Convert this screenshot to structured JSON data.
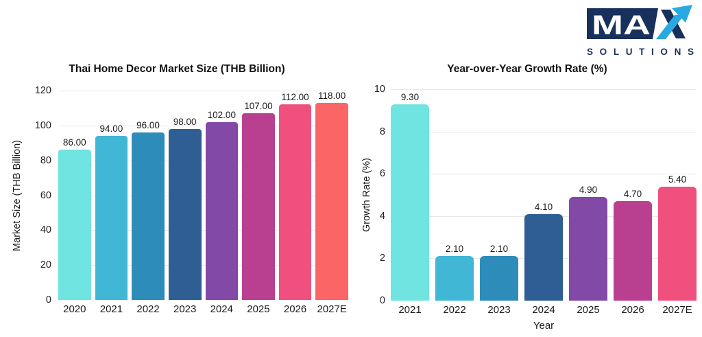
{
  "page": {
    "background": "#ffffff"
  },
  "logo": {
    "ma_letters": "MA",
    "subtext": "SOLUTIONS",
    "navy": "#18305C",
    "light_blue": "#29A9E1"
  },
  "chart_data": [
    {
      "type": "bar",
      "title": "Thai Home Decor Market Size (THB Billion)",
      "categories": [
        "2020",
        "2021",
        "2022",
        "2023",
        "2024",
        "2025",
        "2026",
        "2027E"
      ],
      "values": [
        86,
        94,
        96,
        98,
        102,
        107,
        112,
        118
      ],
      "value_labels": [
        "86.00",
        "94.00",
        "96.00",
        "98.00",
        "102.00",
        "107.00",
        "112.00",
        "118.00"
      ],
      "xlabel": "",
      "ylabel": "Market Size (THB Billion)",
      "ylim": [
        0,
        120
      ],
      "ytick_step": 20,
      "grid": true,
      "legend": false,
      "bar_colors": [
        "#6FE4E0",
        "#41B7D6",
        "#2E8CBB",
        "#2E5E94",
        "#8349A7",
        "#B94090",
        "#F0507E",
        "#FC6566"
      ]
    },
    {
      "type": "bar",
      "title": "Year-over-Year Growth Rate (%)",
      "categories": [
        "2021",
        "2022",
        "2023",
        "2024",
        "2025",
        "2026",
        "2027E"
      ],
      "values": [
        9.3,
        2.1,
        2.1,
        4.1,
        4.9,
        4.7,
        5.4
      ],
      "value_labels": [
        "9.30",
        "2.10",
        "2.10",
        "4.10",
        "4.90",
        "4.70",
        "5.40"
      ],
      "xlabel": "Year",
      "ylabel": "Growth Rate (%)",
      "ylim": [
        0,
        10
      ],
      "ytick_step": 2,
      "grid": true,
      "legend": false,
      "bar_colors": [
        "#6FE4E0",
        "#41B7D6",
        "#2E8CBB",
        "#2E5E94",
        "#8349A7",
        "#B94090",
        "#F0507E"
      ]
    }
  ]
}
